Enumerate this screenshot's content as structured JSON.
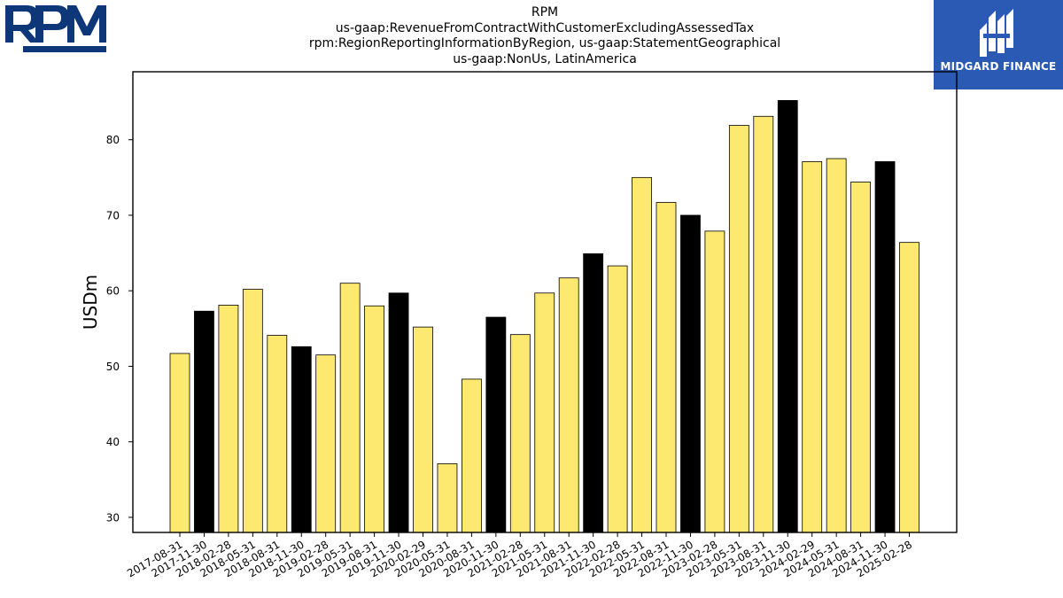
{
  "logos": {
    "company_logo": "RPM",
    "partner_logo_text": "MIDGARD FINANCE"
  },
  "title_lines": [
    "RPM",
    "us-gaap:RevenueFromContractWithCustomerExcludingAssessedTax",
    "rpm:RegionReportingInformationByRegion, us-gaap:StatementGeographical",
    "us-gaap:NonUs, LatinAmerica"
  ],
  "colors": {
    "bar_default": "#fde96f",
    "bar_highlight": "#000000",
    "bar_edge": "#000000",
    "midgard_bg": "#2a5ab4",
    "rpm_blue": "#0d3779"
  },
  "chart_data": {
    "type": "bar",
    "title": "RPM\nus-gaap:RevenueFromContractWithCustomerExcludingAssessedTax\nrpm:RegionReportingInformationByRegion, us-gaap:StatementGeographical\nus-gaap:NonUs, LatinAmerica",
    "xlabel": "",
    "ylabel": "USDm",
    "ylim": [
      28,
      89
    ],
    "yticks": [
      30,
      40,
      50,
      60,
      70,
      80
    ],
    "grid": false,
    "categories": [
      "2017-08-31",
      "2017-11-30",
      "2018-02-28",
      "2018-05-31",
      "2018-08-31",
      "2018-11-30",
      "2019-02-28",
      "2019-05-31",
      "2019-08-31",
      "2019-11-30",
      "2020-02-29",
      "2020-05-31",
      "2020-08-31",
      "2020-11-30",
      "2021-02-28",
      "2021-05-31",
      "2021-08-31",
      "2021-11-30",
      "2022-02-28",
      "2022-05-31",
      "2022-08-31",
      "2022-11-30",
      "2023-02-28",
      "2023-05-31",
      "2023-08-31",
      "2023-11-30",
      "2024-02-29",
      "2024-05-31",
      "2024-08-31",
      "2024-11-30",
      "2025-02-28"
    ],
    "values": [
      51.7,
      57.3,
      58.1,
      60.2,
      54.1,
      52.6,
      51.5,
      61.0,
      58.0,
      59.7,
      55.2,
      37.1,
      48.3,
      56.5,
      54.2,
      59.7,
      61.7,
      64.9,
      63.3,
      75.0,
      71.7,
      70.0,
      67.9,
      81.9,
      83.1,
      85.2,
      77.1,
      77.5,
      74.4,
      77.1,
      66.4
    ],
    "highlighted": [
      false,
      true,
      false,
      false,
      false,
      true,
      false,
      false,
      false,
      true,
      false,
      false,
      false,
      true,
      false,
      false,
      false,
      true,
      false,
      false,
      false,
      true,
      false,
      false,
      false,
      true,
      false,
      false,
      false,
      true,
      false
    ]
  }
}
